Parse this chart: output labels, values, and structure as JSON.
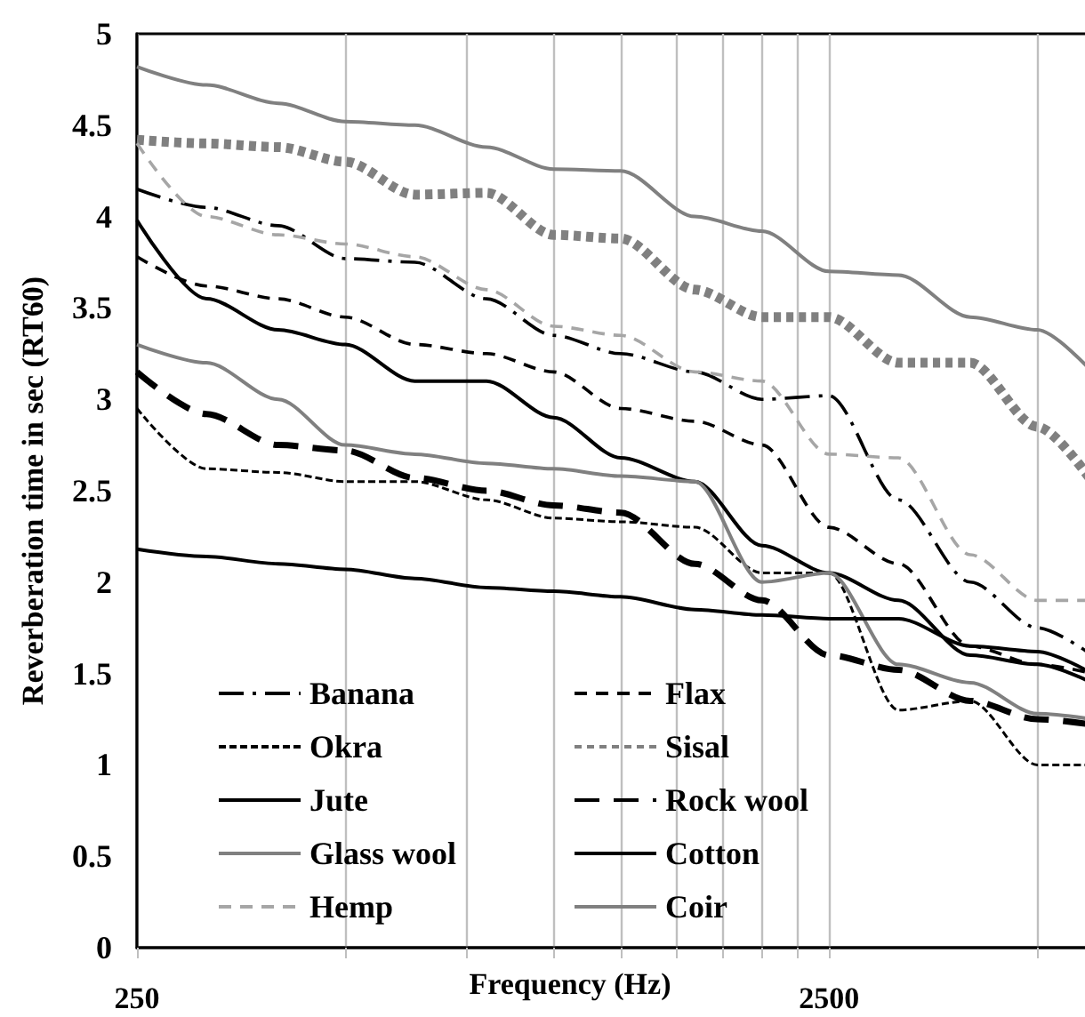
{
  "chart_data": {
    "type": "line",
    "xlabel": "Frequency (Hz)",
    "ylabel": "Reverberation time in sec (RT60)",
    "log": "x",
    "grid": "x",
    "legend": "bottom left",
    "marker": "none",
    "x": [
      250,
      315,
      400,
      500,
      630,
      800,
      1000,
      1250,
      1600,
      2000,
      2500,
      3150,
      4000,
      5000,
      6000
    ],
    "xlim": [
      250,
      6000
    ],
    "xticks": [
      250,
      {
        "value": 500,
        "label": null
      },
      {
        "value": 750,
        "label": null
      },
      {
        "value": 1000,
        "label": null
      },
      {
        "value": 1250,
        "label": null
      },
      {
        "value": 1500,
        "label": null
      },
      {
        "value": 1750,
        "label": null
      },
      {
        "value": 2000,
        "label": null
      },
      {
        "value": 2250,
        "label": null
      },
      2500,
      {
        "value": 5000,
        "label": null
      }
    ],
    "ylim": [
      0,
      5
    ],
    "yticks": [
      0,
      0.5,
      1,
      1.5,
      2,
      2.5,
      3,
      3.5,
      4,
      4.5,
      5
    ],
    "series": [
      {
        "name": "Banana",
        "color": "#000000",
        "line_style": "dashdot",
        "values": [
          4.15,
          4.05,
          3.95,
          3.77,
          3.75,
          3.55,
          3.35,
          3.25,
          3.15,
          3.0,
          3.02,
          2.45,
          2.0,
          1.75,
          1.6
        ]
      },
      {
        "name": "Flax",
        "color": "#000000",
        "line_style": "dashed",
        "values": [
          3.78,
          3.62,
          3.55,
          3.45,
          3.3,
          3.25,
          3.15,
          2.95,
          2.88,
          2.75,
          2.3,
          2.1,
          1.65,
          1.55,
          1.5
        ]
      },
      {
        "name": "Okra",
        "color": "#000000",
        "line_style": "shortdash",
        "values": [
          2.95,
          2.62,
          2.6,
          2.55,
          2.55,
          2.45,
          2.35,
          2.33,
          2.3,
          2.05,
          2.05,
          1.3,
          1.35,
          1.0,
          1.0
        ]
      },
      {
        "name": "Sisal",
        "color": "#808080",
        "line_style": "dotted",
        "values": [
          4.42,
          4.4,
          4.38,
          4.3,
          4.12,
          4.13,
          3.9,
          3.88,
          3.6,
          3.45,
          3.45,
          3.2,
          3.2,
          2.85,
          2.55
        ]
      },
      {
        "name": "Jute",
        "color": "#000000",
        "line_style": "solid",
        "values": [
          3.98,
          3.55,
          3.38,
          3.3,
          3.1,
          3.1,
          2.9,
          2.68,
          2.55,
          2.2,
          2.05,
          1.9,
          1.6,
          1.55,
          1.45
        ]
      },
      {
        "name": "Rock wool",
        "color": "#000000",
        "line_style": "longdash",
        "values": [
          3.15,
          2.92,
          2.75,
          2.72,
          2.57,
          2.5,
          2.42,
          2.38,
          2.1,
          1.9,
          1.6,
          1.52,
          1.35,
          1.25,
          1.22
        ]
      },
      {
        "name": "Glass wool",
        "color": "#808080",
        "line_style": "solid",
        "values": [
          3.3,
          3.2,
          3.0,
          2.75,
          2.7,
          2.65,
          2.62,
          2.58,
          2.55,
          2.0,
          2.05,
          1.55,
          1.45,
          1.28,
          1.25
        ]
      },
      {
        "name": "Cotton",
        "color": "#000000",
        "line_style": "solid",
        "values": [
          2.18,
          2.14,
          2.1,
          2.07,
          2.02,
          1.97,
          1.95,
          1.92,
          1.85,
          1.82,
          1.8,
          1.8,
          1.65,
          1.62,
          1.5
        ]
      },
      {
        "name": "Hemp",
        "color": "#a6a6a6",
        "line_style": "dashed",
        "values": [
          4.4,
          4.0,
          3.9,
          3.85,
          3.78,
          3.6,
          3.4,
          3.35,
          3.15,
          3.1,
          2.7,
          2.68,
          2.15,
          1.9,
          1.9
        ]
      },
      {
        "name": "Coir",
        "color": "#808080",
        "line_style": "solid",
        "values": [
          4.82,
          4.72,
          4.62,
          4.52,
          4.5,
          4.38,
          4.26,
          4.25,
          4.0,
          3.92,
          3.7,
          3.68,
          3.45,
          3.38,
          3.15
        ]
      }
    ]
  }
}
